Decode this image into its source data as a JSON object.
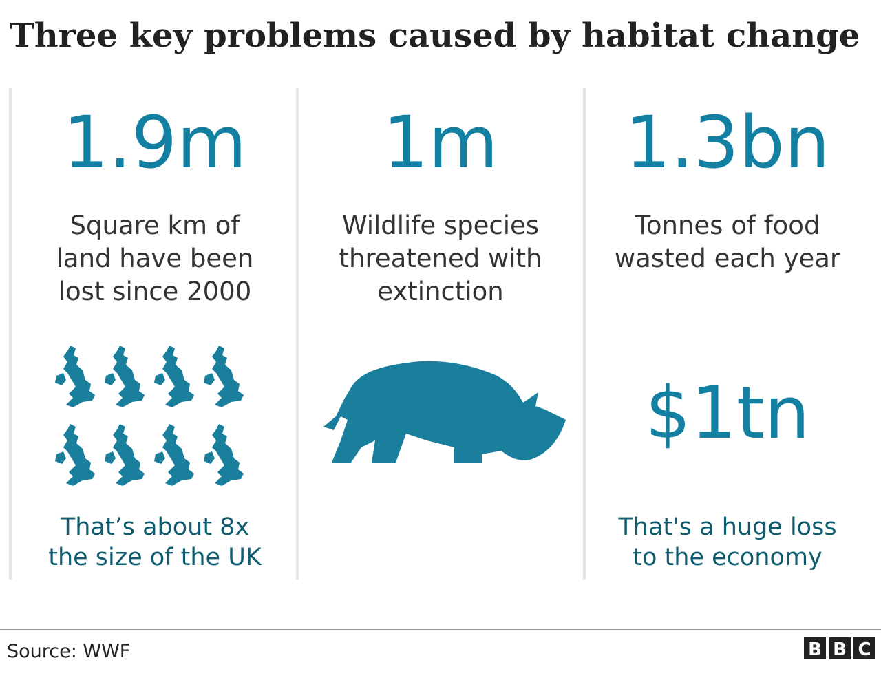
{
  "title": "Three key problems caused by habitat change",
  "panels": [
    {
      "figure": "1.9m",
      "description": [
        "Square km of",
        "land have been",
        "lost since 2000"
      ],
      "note": [
        "That’s about 8x",
        "the size of the UK"
      ]
    },
    {
      "figure": "1m",
      "description": [
        "Wildlife species",
        "threatened with",
        "extinction"
      ]
    },
    {
      "figure": "1.3bn",
      "description": [
        "Tonnes of food",
        "wasted each year"
      ],
      "highlight": "$1tn",
      "note": [
        "That's a huge loss",
        "to the economy"
      ]
    }
  ],
  "source": "Source: WWF",
  "logo": [
    "B",
    "B",
    "C"
  ]
}
